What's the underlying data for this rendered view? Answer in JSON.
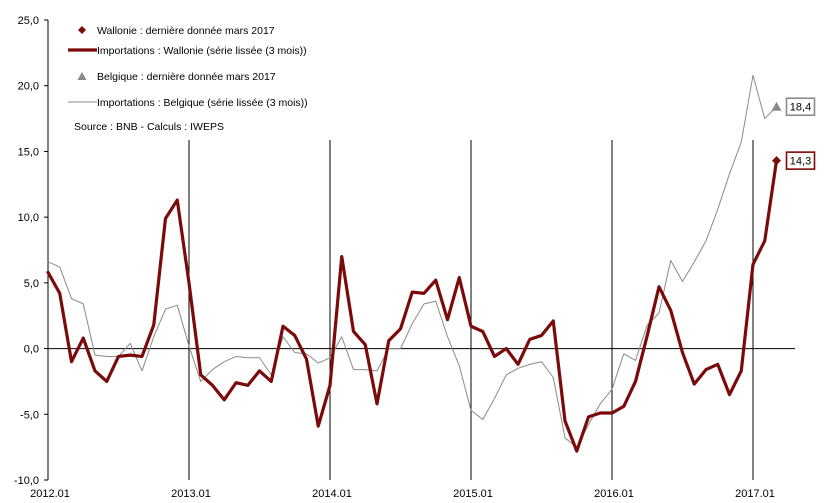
{
  "chart_data": {
    "type": "line",
    "x_start": "2012.01",
    "x_tick_labels": [
      "2012.01",
      "2013.01",
      "2014.01",
      "2015.01",
      "2016.01",
      "2017.01"
    ],
    "vertical_gridlines_at": [
      "2013.01",
      "2014.01",
      "2015.01",
      "2016.01",
      "2017.01"
    ],
    "y_tick_labels": [
      "25,0",
      "20,0",
      "15,0",
      "10,0",
      "5,0",
      "0,0",
      "-5,0",
      "-10,0"
    ],
    "ylim": [
      -10,
      25
    ],
    "series": [
      {
        "name": "Importations : Wallonie (série lissée (3 mois))",
        "color": "#7b0a0a",
        "values": [
          5.8,
          4.2,
          -1.0,
          0.8,
          -1.7,
          -2.5,
          -0.6,
          -0.5,
          -0.6,
          1.8,
          9.9,
          11.3,
          5.0,
          -2.0,
          -2.8,
          -3.9,
          -2.6,
          -2.8,
          -1.7,
          -2.5,
          1.7,
          1.0,
          -0.8,
          -5.9,
          -2.8,
          7.0,
          1.3,
          0.3,
          -4.2,
          0.6,
          1.5,
          4.3,
          4.2,
          5.2,
          2.2,
          5.4,
          1.7,
          1.3,
          -0.6,
          0.0,
          -1.2,
          0.7,
          1.0,
          2.1,
          -5.5,
          -7.8,
          -5.2,
          -4.9,
          -4.9,
          -4.4,
          -2.5,
          1.0,
          4.7,
          2.9,
          -0.3,
          -2.7,
          -1.6,
          -1.2,
          -3.5,
          -1.7,
          6.4,
          8.2,
          14.3
        ]
      },
      {
        "name": "Importations : Belgique (série lissée (3 mois))",
        "color": "#8a8a8a",
        "values": [
          6.6,
          6.2,
          3.8,
          3.4,
          -0.5,
          -0.6,
          -0.6,
          0.4,
          -1.7,
          0.9,
          3.0,
          3.3,
          0.2,
          -2.5,
          -1.6,
          -1.0,
          -0.6,
          -0.7,
          -0.7,
          -2.0,
          0.9,
          -0.3,
          -0.4,
          -1.1,
          -0.7,
          0.9,
          -1.6,
          -1.6,
          -1.7,
          0.0,
          0.0,
          1.9,
          3.4,
          3.6,
          0.9,
          -1.3,
          -4.7,
          -5.4,
          -3.8,
          -2.0,
          -1.5,
          -1.2,
          -1.0,
          -2.2,
          -6.8,
          -7.5,
          -5.8,
          -4.2,
          -3.1,
          -0.4,
          -0.9,
          1.8,
          2.7,
          6.7,
          5.1,
          6.6,
          8.2,
          10.6,
          13.3,
          15.7,
          20.8,
          17.5,
          18.4
        ]
      }
    ],
    "legend": {
      "placement": "top-left",
      "entries": [
        {
          "label": "Wallonie : dernière donnée mars 2017",
          "marker": "diamond",
          "color": "#7b0a0a"
        },
        {
          "label": "Importations : Wallonie (série lissée (3 mois))",
          "marker": "thick-line",
          "color": "#7b0a0a"
        },
        {
          "label": "Belgique : dernière donnée mars 2017",
          "marker": "triangle",
          "color": "#8a8a8a"
        },
        {
          "label": "Importations : Belgique (série lissée (3 mois))",
          "marker": "thin-line",
          "color": "#8a8a8a"
        }
      ]
    },
    "source_note": "Source : BNB - Calculs : IWEPS",
    "callouts": [
      {
        "series_index": 0,
        "label": "14,3",
        "marker": "diamond",
        "color": "#7b0a0a"
      },
      {
        "series_index": 1,
        "label": "18,4",
        "marker": "triangle",
        "color": "#8a8a8a"
      }
    ],
    "title": "",
    "xlabel": "",
    "ylabel": ""
  }
}
